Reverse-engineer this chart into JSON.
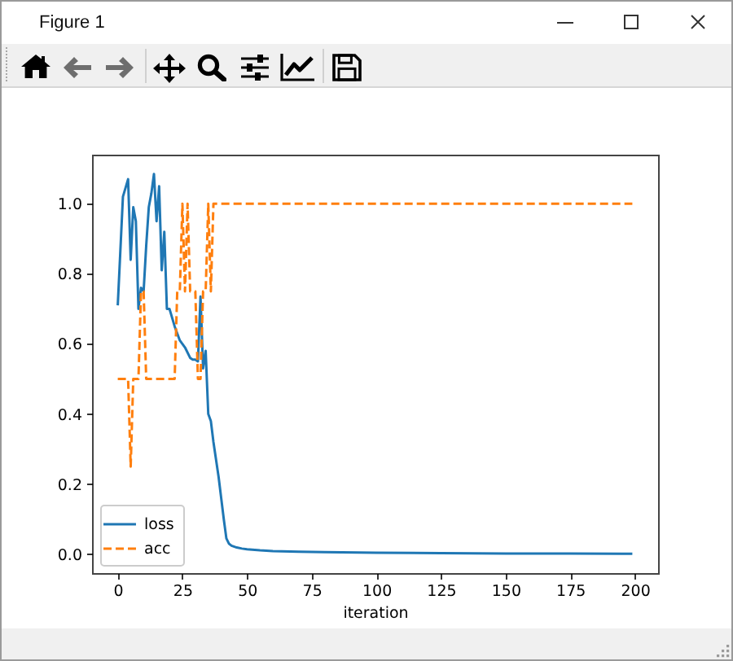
{
  "chart_data": {
    "type": "line",
    "annotations": [
      "Figure 1"
    ],
    "xlabel": "iteration",
    "xlim": [
      -9.95,
      208.95
    ],
    "xticks": [
      0,
      25,
      50,
      75,
      100,
      125,
      150,
      175,
      200
    ],
    "ylim": [
      -0.054,
      1.14
    ],
    "yticks": [
      {
        "value": 0,
        "label": "0.0"
      },
      0.2,
      0.4,
      0.6,
      0.8,
      {
        "value": 1,
        "label": "1.0"
      }
    ],
    "legend": "bottom left",
    "series": [
      {
        "name": "loss",
        "color": "#1f77b4",
        "line_style": "solid",
        "x": [
          0,
          2,
          4,
          5,
          6,
          7,
          8,
          9,
          10,
          11,
          12,
          13,
          14,
          15,
          16,
          17,
          18,
          19,
          20,
          22,
          24,
          26,
          28,
          29,
          30,
          31,
          32,
          33,
          34,
          35,
          36,
          37,
          38,
          39,
          40,
          41,
          42,
          43,
          44,
          46,
          48,
          50,
          55,
          60,
          70,
          80,
          100,
          125,
          150,
          175,
          199
        ],
        "values": [
          0.71,
          1.02,
          1.07,
          0.84,
          0.99,
          0.95,
          0.7,
          0.76,
          0.75,
          0.88,
          0.99,
          1.03,
          1.085,
          0.95,
          1.05,
          0.81,
          0.92,
          0.7,
          0.7,
          0.65,
          0.61,
          0.59,
          0.56,
          0.555,
          0.555,
          0.55,
          0.735,
          0.53,
          0.58,
          0.4,
          0.38,
          0.32,
          0.27,
          0.22,
          0.16,
          0.1,
          0.045,
          0.03,
          0.024,
          0.019,
          0.016,
          0.014,
          0.011,
          0.009,
          0.007,
          0.006,
          0.004,
          0.003,
          0.002,
          0.002,
          0.001
        ]
      },
      {
        "name": "acc",
        "color": "#ff7f0e",
        "line_style": "dashed",
        "x": [
          0,
          4,
          5,
          6,
          8,
          9,
          10,
          11,
          22,
          23,
          24,
          25,
          26,
          27,
          28,
          30,
          31,
          32,
          33,
          34,
          35,
          36,
          37,
          199
        ],
        "values": [
          0.5,
          0.5,
          0.25,
          0.5,
          0.5,
          0.75,
          0.75,
          0.5,
          0.5,
          0.75,
          0.75,
          1.0,
          0.75,
          1.0,
          0.75,
          0.75,
          0.5,
          0.5,
          0.75,
          0.75,
          1.0,
          0.75,
          1.0,
          1.0
        ]
      }
    ]
  }
}
